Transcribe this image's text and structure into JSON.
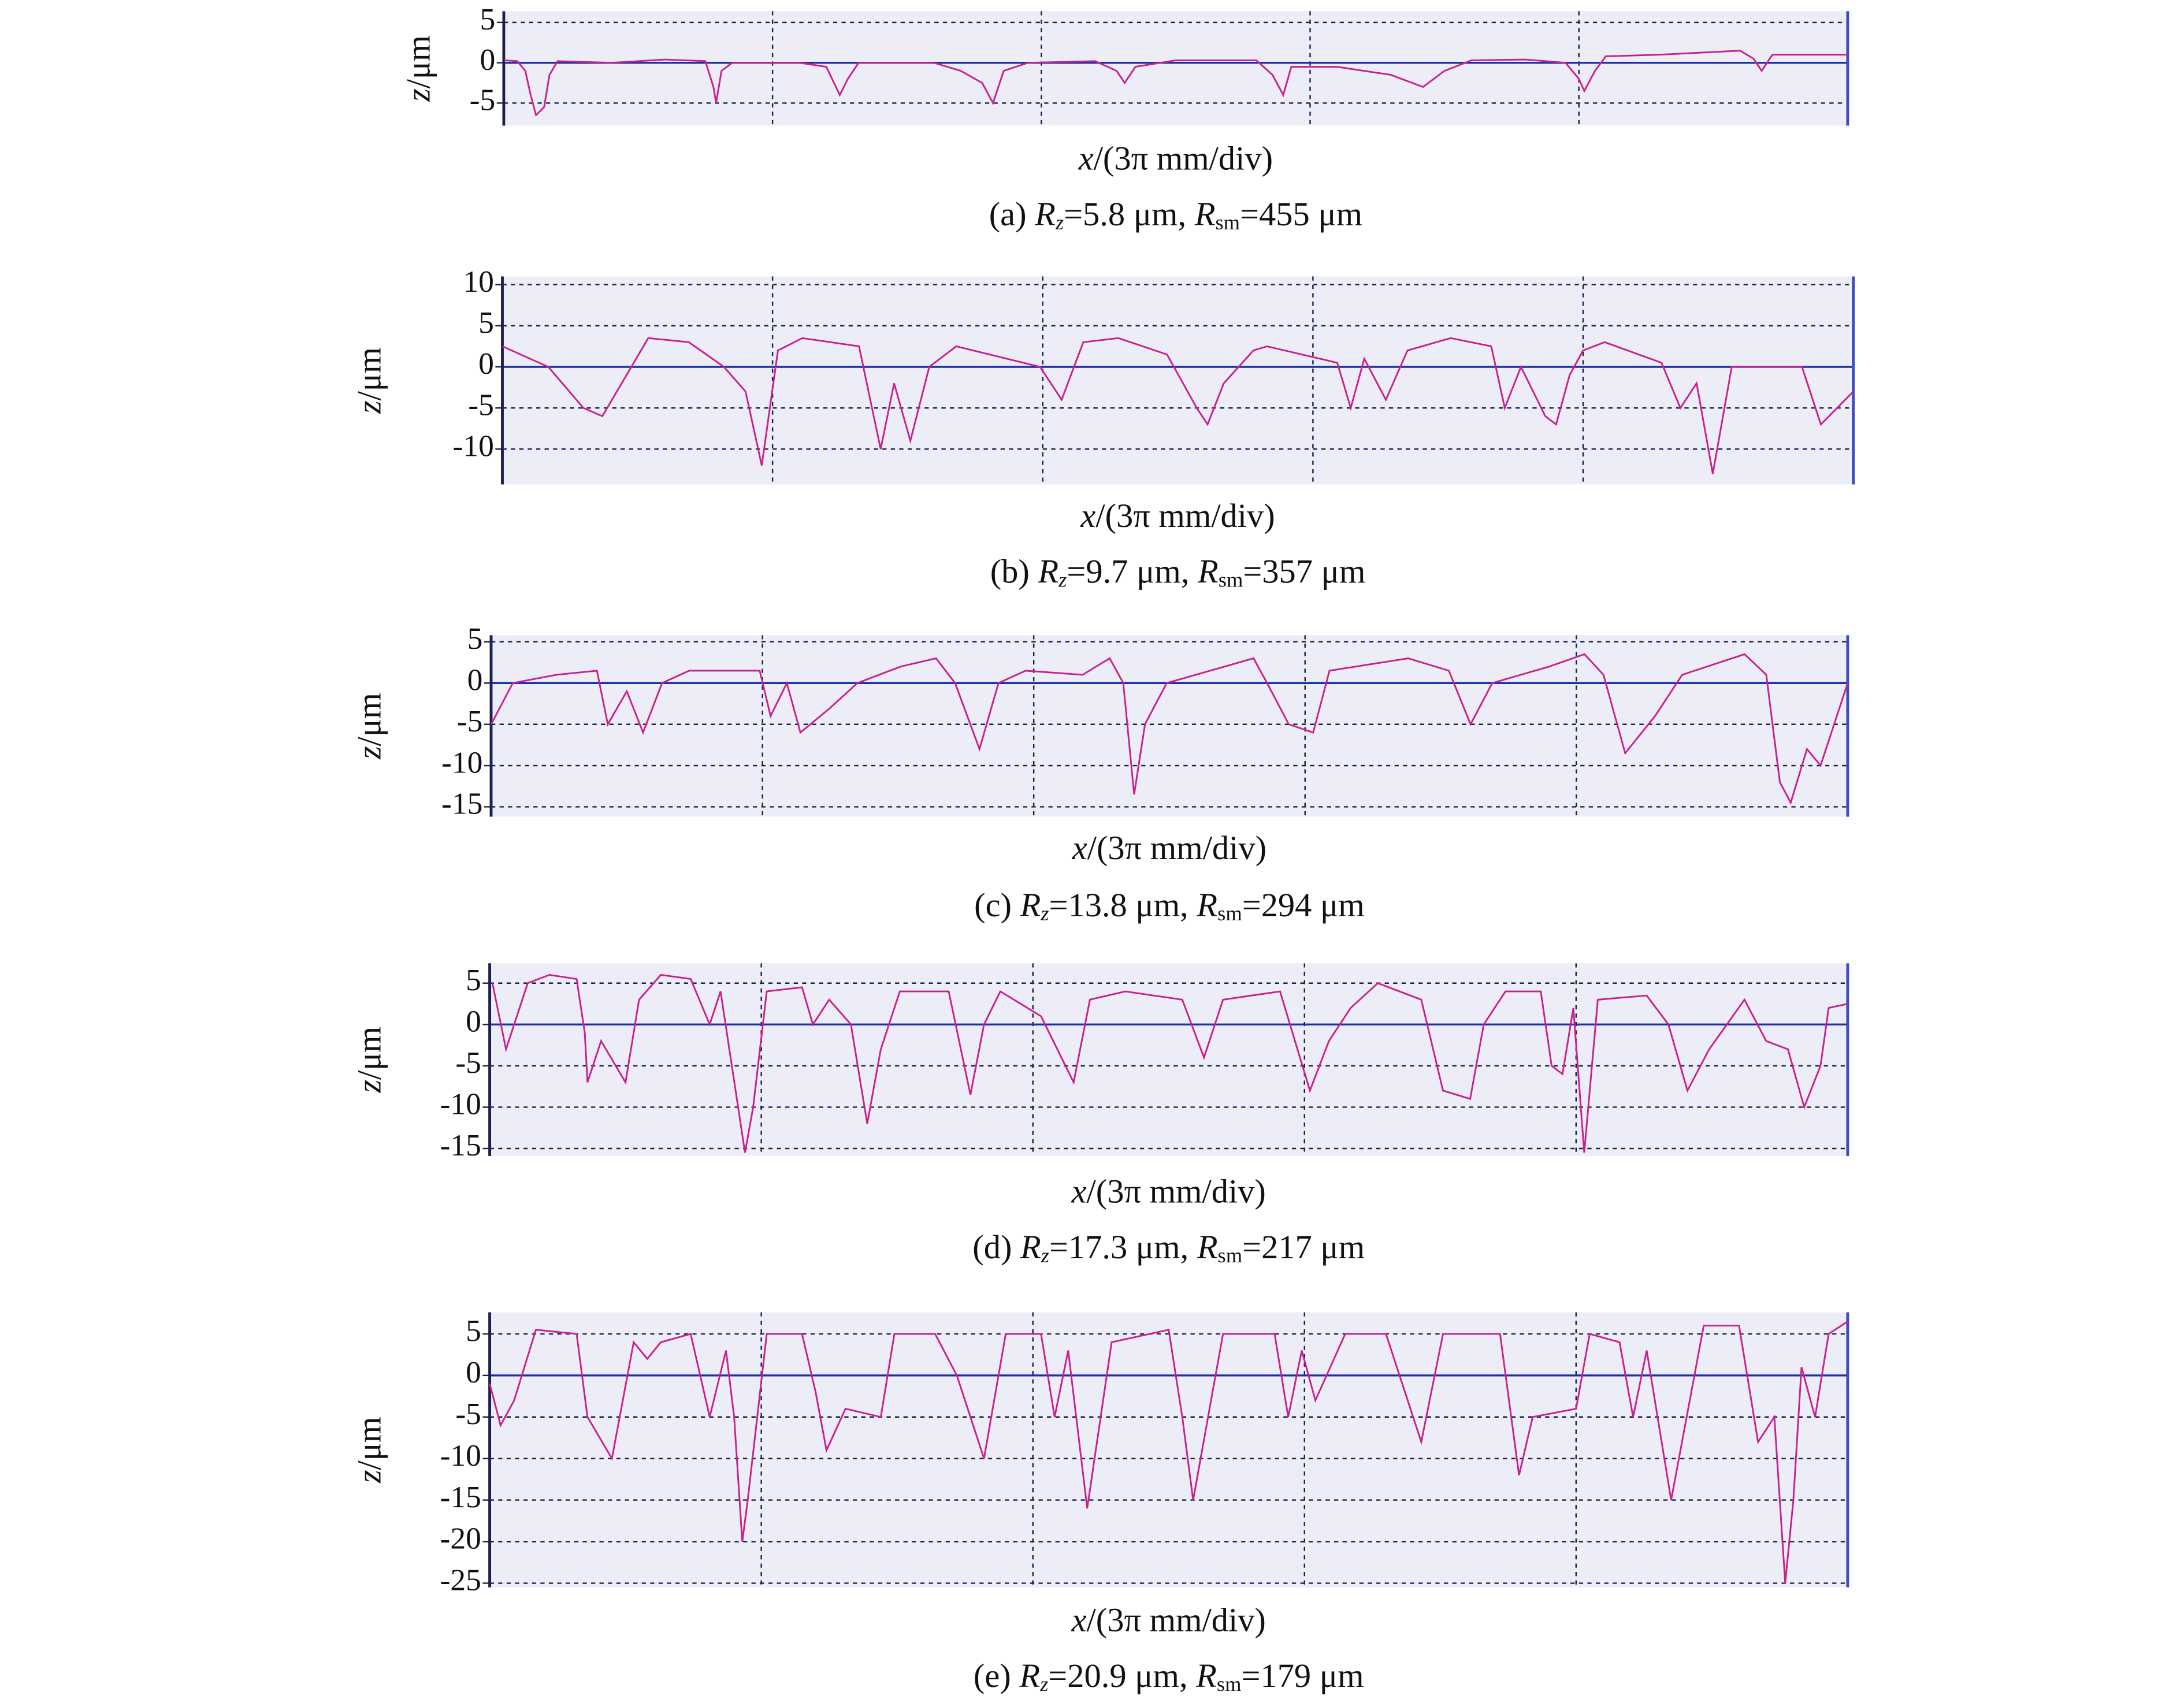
{
  "chart_data": [
    {
      "type": "line",
      "caption": [
        "(a) ",
        "R",
        "z",
        "=5.8 μm, ",
        "R",
        "sm",
        "=455 μm"
      ],
      "xlabel": [
        "x",
        "/(3π mm/div)"
      ],
      "ylabel": [
        "z",
        "/μm"
      ],
      "color": "#c8208c",
      "grid": true,
      "xlim": [
        0,
        5
      ],
      "xticks": [
        0,
        1,
        2,
        3,
        4,
        5
      ],
      "ylim": [
        -7.8,
        6.4
      ],
      "yticks": [
        -5,
        0,
        5
      ],
      "x": [
        0,
        0.05,
        0.08,
        0.1,
        0.12,
        0.15,
        0.17,
        0.2,
        0.4,
        0.6,
        0.75,
        0.78,
        0.79,
        0.81,
        0.85,
        1.1,
        1.2,
        1.25,
        1.28,
        1.32,
        1.6,
        1.7,
        1.78,
        1.82,
        1.86,
        1.95,
        2.2,
        2.28,
        2.31,
        2.35,
        2.5,
        2.8,
        2.86,
        2.9,
        2.93,
        3.1,
        3.3,
        3.42,
        3.5,
        3.6,
        3.8,
        3.95,
        4.0,
        4.02,
        4.06,
        4.1,
        4.3,
        4.6,
        4.65,
        4.68,
        4.72,
        5
      ],
      "values": [
        0.3,
        0.2,
        -1,
        -4,
        -6.5,
        -5.5,
        -1.5,
        0.2,
        0,
        0.4,
        0.2,
        -3,
        -5,
        -1,
        0,
        0,
        -0.5,
        -4,
        -2,
        0,
        0,
        -1,
        -2.5,
        -5,
        -1,
        0,
        0.2,
        -1,
        -2.5,
        -0.5,
        0.3,
        0.3,
        -1.5,
        -4,
        -0.5,
        -0.5,
        -1.5,
        -3,
        -1,
        0.3,
        0.4,
        0,
        -2,
        -3.5,
        -1,
        0.8,
        1,
        1.5,
        0.5,
        -1,
        1,
        1
      ]
    },
    {
      "type": "line",
      "caption": [
        "(b) ",
        "R",
        "z",
        "=9.7 μm, ",
        "R",
        "sm",
        "=357 μm"
      ],
      "xlabel": [
        "x",
        "/(3π mm/div)"
      ],
      "ylabel": [
        "z",
        "/μm"
      ],
      "color": "#c8208c",
      "grid": true,
      "xlim": [
        0,
        5
      ],
      "xticks": [
        0,
        1,
        2,
        3,
        4,
        5
      ],
      "ylim": [
        -14.3,
        11
      ],
      "yticks": [
        -10,
        -5,
        0,
        5,
        10
      ],
      "x": [
        0,
        0.17,
        0.3,
        0.37,
        0.54,
        0.69,
        0.82,
        0.9,
        0.96,
        1.02,
        1.11,
        1.32,
        1.4,
        1.45,
        1.51,
        1.58,
        1.68,
        1.99,
        2.07,
        2.15,
        2.28,
        2.46,
        2.57,
        2.61,
        2.67,
        2.78,
        2.83,
        3.09,
        3.14,
        3.19,
        3.27,
        3.35,
        3.51,
        3.66,
        3.71,
        3.77,
        3.86,
        3.9,
        3.95,
        4.0,
        4.08,
        4.29,
        4.36,
        4.42,
        4.48,
        4.55,
        4.81,
        4.88,
        4.94,
        5
      ],
      "values": [
        2.5,
        0,
        -5,
        -6,
        3.5,
        3,
        0,
        -3,
        -12,
        2,
        3.5,
        2.5,
        -10,
        -2,
        -9,
        0,
        2.5,
        0,
        -4,
        3,
        3.5,
        1.5,
        -5,
        -7,
        -2,
        2,
        2.5,
        0.5,
        -5,
        1,
        -4,
        2,
        3.5,
        2.5,
        -5,
        0,
        -6,
        -7,
        -1,
        2,
        3,
        0.5,
        -5,
        -2,
        -13,
        0,
        0,
        -7,
        -5,
        -3
      ]
    },
    {
      "type": "line",
      "caption": [
        "(c) ",
        "R",
        "z",
        "=13.8 μm, ",
        "R",
        "sm",
        "=294 μm"
      ],
      "xlabel": [
        "x",
        "/(3π mm/div)"
      ],
      "ylabel": [
        "z",
        "/μm"
      ],
      "color": "#c8208c",
      "grid": true,
      "xlim": [
        0,
        5
      ],
      "xticks": [
        0,
        1,
        2,
        3,
        4,
        5
      ],
      "ylim": [
        -16.2,
        5.8
      ],
      "yticks": [
        -15,
        -10,
        -5,
        0,
        5
      ],
      "x": [
        0,
        0.08,
        0.24,
        0.39,
        0.43,
        0.5,
        0.56,
        0.63,
        0.73,
        0.99,
        1.03,
        1.09,
        1.14,
        1.25,
        1.35,
        1.51,
        1.64,
        1.71,
        1.8,
        1.87,
        1.97,
        2.18,
        2.28,
        2.33,
        2.37,
        2.41,
        2.49,
        2.81,
        2.86,
        2.94,
        3.03,
        3.09,
        3.38,
        3.53,
        3.61,
        3.69,
        3.9,
        4.03,
        4.1,
        4.18,
        4.29,
        4.39,
        4.62,
        4.7,
        4.75,
        4.79,
        4.85,
        4.9,
        5
      ],
      "values": [
        -5,
        0,
        1,
        1.5,
        -5,
        -1,
        -6,
        0,
        1.5,
        1.5,
        -4,
        0,
        -6,
        -3,
        0,
        2,
        3,
        0,
        -8,
        0,
        1.5,
        1,
        3,
        0,
        -13.5,
        -5,
        0,
        3,
        0,
        -5,
        -6,
        1.5,
        3,
        1.5,
        -5,
        0,
        2,
        3.5,
        1,
        -8.5,
        -4,
        1,
        3.5,
        1,
        -12,
        -14.5,
        -8,
        -10,
        0
      ]
    },
    {
      "type": "line",
      "caption": [
        "(d) ",
        "R",
        "z",
        "=17.3 μm, ",
        "R",
        "sm",
        "=217 μm"
      ],
      "xlabel": [
        "x",
        "/(3π mm/div)"
      ],
      "ylabel": [
        "z",
        "/μm"
      ],
      "color": "#c8208c",
      "grid": true,
      "xlim": [
        0,
        5
      ],
      "xticks": [
        0,
        1,
        2,
        3,
        4,
        5
      ],
      "ylim": [
        -15.9,
        7.4
      ],
      "yticks": [
        -15,
        -10,
        -5,
        0,
        5
      ],
      "x": [
        0.01,
        0.06,
        0.14,
        0.22,
        0.32,
        0.35,
        0.36,
        0.41,
        0.5,
        0.55,
        0.63,
        0.74,
        0.81,
        0.85,
        0.94,
        0.97,
        1.02,
        1.15,
        1.19,
        1.25,
        1.33,
        1.39,
        1.44,
        1.51,
        1.69,
        1.77,
        1.82,
        1.88,
        2.03,
        2.15,
        2.21,
        2.34,
        2.55,
        2.63,
        2.7,
        2.91,
        3.02,
        3.09,
        3.17,
        3.27,
        3.43,
        3.51,
        3.61,
        3.66,
        3.74,
        3.87,
        3.91,
        3.95,
        3.99,
        4.03,
        4.08,
        4.26,
        4.34,
        4.41,
        4.49,
        4.62,
        4.7,
        4.78,
        4.84,
        4.9,
        4.93,
        5
      ],
      "values": [
        5,
        -3,
        5,
        6,
        5.5,
        -1,
        -7,
        -2,
        -7,
        3,
        6,
        5.5,
        0,
        4,
        -15.5,
        -10,
        4,
        4.5,
        0,
        3,
        0,
        -12,
        -3,
        4,
        4,
        -8.5,
        0,
        4,
        1,
        -7,
        3,
        4,
        3,
        -4,
        3,
        4,
        -8,
        -2,
        2,
        5,
        3,
        -8,
        -9,
        0,
        4,
        4,
        -5,
        -6,
        2,
        -15.5,
        3,
        3.5,
        0,
        -8,
        -3,
        3,
        -2,
        -3,
        -10,
        -5,
        2,
        2.5
      ]
    },
    {
      "type": "line",
      "caption": [
        "(e) ",
        "R",
        "z",
        "=20.9 μm, ",
        "R",
        "sm",
        "=179 μm"
      ],
      "xlabel": [
        "x",
        "/(3π mm/div)"
      ],
      "ylabel": [
        "z",
        "/μm"
      ],
      "color": "#c8208c",
      "grid": true,
      "xlim": [
        0,
        5
      ],
      "xticks": [
        0,
        1,
        2,
        3,
        4,
        5
      ],
      "ylim": [
        -25.5,
        7.6
      ],
      "yticks": [
        -25,
        -20,
        -15,
        -10,
        -5,
        0,
        5
      ],
      "x": [
        0,
        0.04,
        0.09,
        0.17,
        0.32,
        0.36,
        0.45,
        0.53,
        0.58,
        0.63,
        0.74,
        0.81,
        0.87,
        0.9,
        0.93,
        0.95,
        1.02,
        1.15,
        1.2,
        1.24,
        1.31,
        1.44,
        1.49,
        1.64,
        1.72,
        1.82,
        1.9,
        2.03,
        2.08,
        2.13,
        2.2,
        2.29,
        2.5,
        2.55,
        2.59,
        2.7,
        2.89,
        2.94,
        2.99,
        3.04,
        3.15,
        3.3,
        3.43,
        3.51,
        3.72,
        3.79,
        3.84,
        4.0,
        4.05,
        4.16,
        4.21,
        4.26,
        4.35,
        4.47,
        4.6,
        4.67,
        4.73,
        4.77,
        4.8,
        4.83,
        4.88,
        4.93,
        5
      ],
      "values": [
        -1,
        -6,
        -3,
        5.5,
        5,
        -5,
        -10,
        4,
        2,
        4,
        5,
        -5,
        3,
        -5,
        -20,
        -15,
        5,
        5,
        -2,
        -9,
        -4,
        -5,
        5,
        5,
        0,
        -10,
        5,
        5,
        -5,
        3,
        -16,
        4,
        5.5,
        -5,
        -15,
        5,
        5,
        -5,
        3,
        -3,
        5,
        5,
        -8,
        5,
        5,
        -12,
        -5,
        -4,
        5,
        4,
        -5,
        3,
        -15,
        6,
        6,
        -8,
        -5,
        -25,
        -15,
        1,
        -5,
        5,
        6.5
      ]
    }
  ]
}
